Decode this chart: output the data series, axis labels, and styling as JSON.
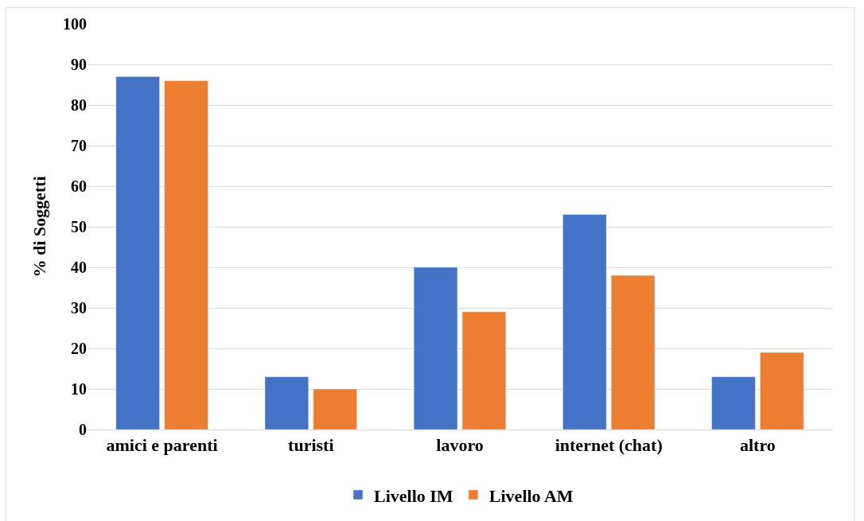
{
  "chart_data": {
    "type": "bar",
    "ylabel": "% di Soggetti",
    "categories": [
      "amici e parenti",
      "turisti",
      "lavoro",
      "internet (chat)",
      "altro"
    ],
    "series": [
      {
        "name": "Livello IM",
        "color": "#4472c4",
        "values": [
          87,
          13,
          40,
          53,
          13
        ]
      },
      {
        "name": "Livello AM",
        "color": "#ed7d31",
        "values": [
          86,
          10,
          29,
          38,
          19
        ]
      }
    ],
    "ylim": [
      0,
      100
    ],
    "yticks": [
      0,
      10,
      20,
      30,
      40,
      50,
      60,
      70,
      80,
      90,
      100
    ],
    "grid": "y",
    "legend": "bottom"
  }
}
